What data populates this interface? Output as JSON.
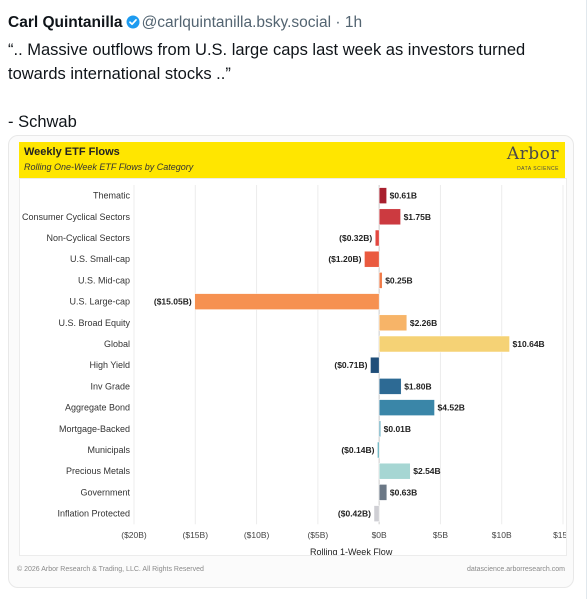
{
  "post": {
    "author": "Carl Quintanilla",
    "handle": "@carlquintanilla.bsky.social",
    "separator": "·",
    "time": "1h",
    "text": "“.. Massive outflows from U.S. large caps last week as investors turned towards international stocks ..”\n\n- Schwab"
  },
  "embed": {
    "banner_title": "Weekly ETF Flows",
    "banner_subtitle": "Rolling One-Week ETF Flows by Category",
    "logo_text": "Arbor",
    "logo_subtext": "DATA SCIENCE",
    "footer_left": "© 2026 Arbor Research & Trading, LLC. All Rights Reserved",
    "footer_right": "datascience.arborresearch.com"
  },
  "colors": {
    "banner": "#ffe600",
    "verified": "#1d9bf0"
  },
  "chart_data": {
    "type": "bar",
    "orientation": "horizontal",
    "xlabel": "Rolling 1-Week Flow",
    "xlim": [
      -20,
      15
    ],
    "xticks": [
      -20,
      -15,
      -10,
      -5,
      0,
      5,
      10,
      15
    ],
    "xtick_labels": [
      "($20B)",
      "($15B)",
      "($10B)",
      "($5B)",
      "$0B",
      "$5B",
      "$10B",
      "$15B"
    ],
    "grid": true,
    "categories": [
      "Thematic",
      "Consumer Cyclical Sectors",
      "Non-Cyclical Sectors",
      "U.S. Small-cap",
      "U.S. Mid-cap",
      "U.S. Large-cap",
      "U.S. Broad Equity",
      "Global",
      "High Yield",
      "Inv Grade",
      "Aggregate Bond",
      "Mortgage-Backed",
      "Municipals",
      "Precious Metals",
      "Government",
      "Inflation Protected"
    ],
    "values": [
      0.61,
      1.75,
      -0.32,
      -1.2,
      0.25,
      -15.05,
      2.26,
      10.64,
      -0.71,
      1.8,
      4.52,
      0.01,
      -0.14,
      2.54,
      0.63,
      -0.42
    ],
    "labels": [
      "$0.61B",
      "$1.75B",
      "($0.32B)",
      "($1.20B)",
      "$0.25B",
      "($15.05B)",
      "$2.26B",
      "$10.64B",
      "($0.71B)",
      "$1.80B",
      "$4.52B",
      "$0.01B",
      "($0.14B)",
      "$2.54B",
      "$0.63B",
      "($0.42B)"
    ],
    "colors": [
      "#a8202e",
      "#cc3a40",
      "#e2473f",
      "#ea5a3f",
      "#f07a47",
      "#f69151",
      "#f7b468",
      "#f5d275",
      "#1f4e79",
      "#2d6a94",
      "#3a86a8",
      "#4d9eb6",
      "#66b3c0",
      "#a6d6d3",
      "#6b7886",
      "#cfcfd4"
    ]
  }
}
